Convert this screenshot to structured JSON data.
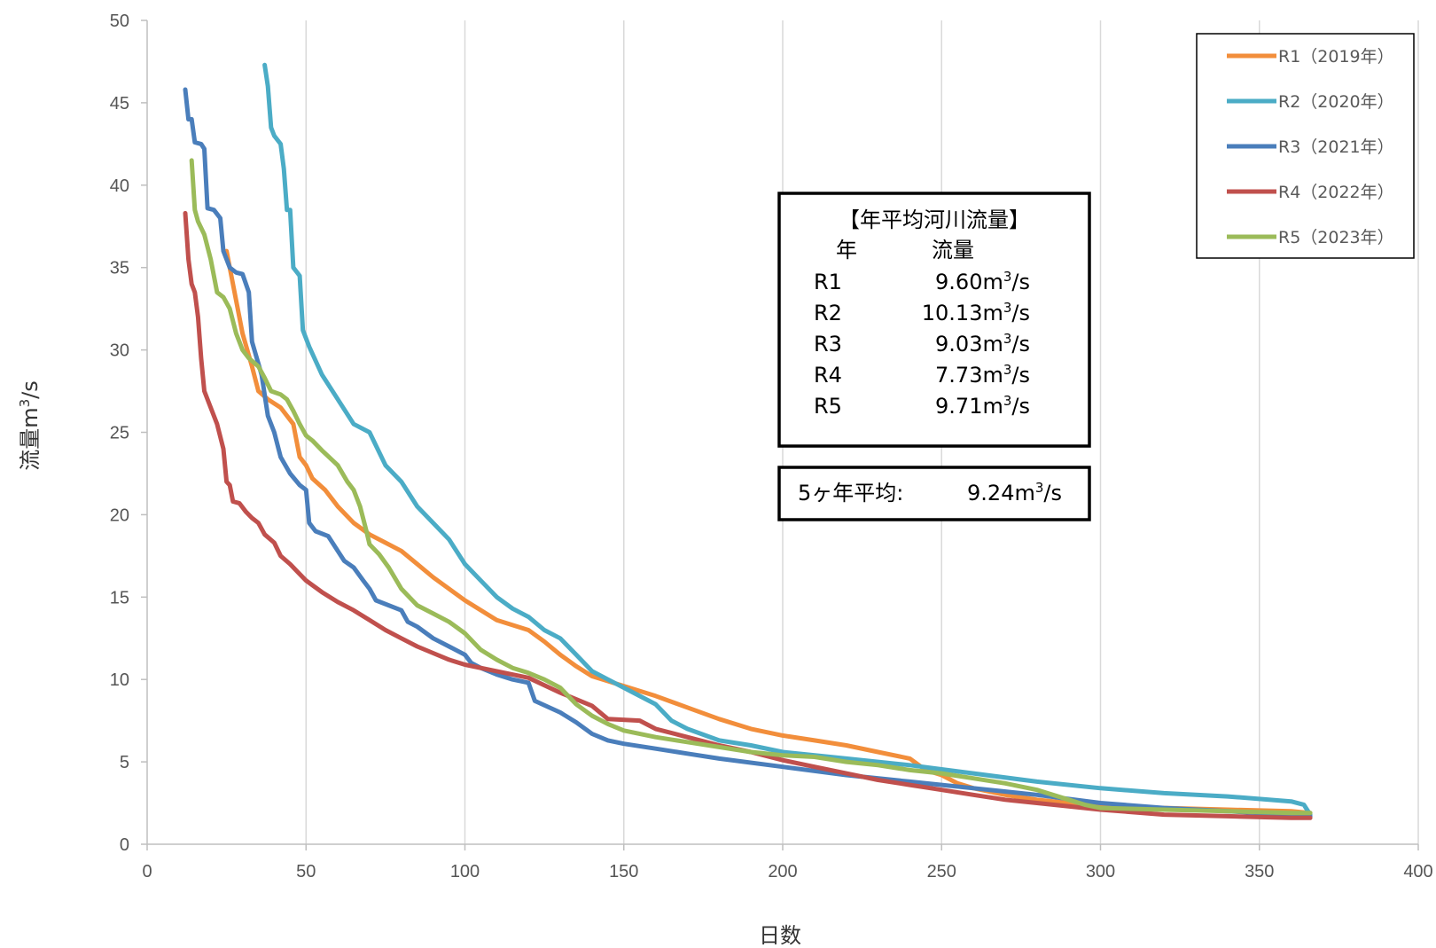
{
  "chart_data": {
    "type": "line",
    "xlabel": "日数",
    "ylabel": "流量m³/s",
    "ylabel_main": "流量m",
    "ylabel_sup": "3",
    "ylabel_tail": "/s",
    "xlim": [
      0,
      400
    ],
    "ylim": [
      0,
      50
    ],
    "x_ticks": [
      "0",
      "50",
      "100",
      "150",
      "200",
      "250",
      "300",
      "350",
      "400"
    ],
    "y_ticks": [
      "0",
      "5",
      "10",
      "15",
      "20",
      "25",
      "30",
      "35",
      "40",
      "45",
      "50"
    ],
    "grid": "vertical",
    "legend_position": "top-right",
    "series": [
      {
        "name": "R1（2019年）",
        "color": "#f28e3b",
        "points": [
          [
            25,
            36
          ],
          [
            27,
            34
          ],
          [
            30,
            31
          ],
          [
            33,
            29
          ],
          [
            35,
            27.5
          ],
          [
            38,
            27
          ],
          [
            42,
            26.5
          ],
          [
            46,
            25.5
          ],
          [
            48,
            23.5
          ],
          [
            50,
            23
          ],
          [
            52,
            22.2
          ],
          [
            56,
            21.5
          ],
          [
            60,
            20.5
          ],
          [
            65,
            19.5
          ],
          [
            70,
            18.8
          ],
          [
            75,
            18.3
          ],
          [
            80,
            17.8
          ],
          [
            85,
            17
          ],
          [
            90,
            16.2
          ],
          [
            95,
            15.5
          ],
          [
            100,
            14.8
          ],
          [
            110,
            13.6
          ],
          [
            120,
            13
          ],
          [
            125,
            12.3
          ],
          [
            130,
            11.5
          ],
          [
            135,
            10.8
          ],
          [
            140,
            10.2
          ],
          [
            150,
            9.6
          ],
          [
            160,
            9
          ],
          [
            170,
            8.3
          ],
          [
            180,
            7.6
          ],
          [
            190,
            7
          ],
          [
            200,
            6.6
          ],
          [
            210,
            6.3
          ],
          [
            220,
            6
          ],
          [
            230,
            5.6
          ],
          [
            240,
            5.2
          ],
          [
            245,
            4.5
          ],
          [
            250,
            4.2
          ],
          [
            255,
            3.7
          ],
          [
            260,
            3.4
          ],
          [
            270,
            3
          ],
          [
            280,
            2.7
          ],
          [
            290,
            2.5
          ],
          [
            300,
            2.3
          ],
          [
            320,
            2.2
          ],
          [
            340,
            2.1
          ],
          [
            360,
            2
          ],
          [
            366,
            1.9
          ]
        ]
      },
      {
        "name": "R2（2020年）",
        "color": "#4bacc6",
        "points": [
          [
            37,
            47.3
          ],
          [
            38,
            46
          ],
          [
            39,
            43.5
          ],
          [
            40,
            43
          ],
          [
            42,
            42.5
          ],
          [
            43,
            41
          ],
          [
            44,
            38.5
          ],
          [
            45,
            38.5
          ],
          [
            46,
            35
          ],
          [
            48,
            34.5
          ],
          [
            49,
            31.2
          ],
          [
            51,
            30.2
          ],
          [
            55,
            28.5
          ],
          [
            60,
            27
          ],
          [
            65,
            25.5
          ],
          [
            70,
            25
          ],
          [
            75,
            23
          ],
          [
            80,
            22
          ],
          [
            85,
            20.5
          ],
          [
            90,
            19.5
          ],
          [
            95,
            18.5
          ],
          [
            100,
            17
          ],
          [
            105,
            16
          ],
          [
            110,
            15
          ],
          [
            115,
            14.3
          ],
          [
            120,
            13.8
          ],
          [
            125,
            13
          ],
          [
            130,
            12.5
          ],
          [
            135,
            11.5
          ],
          [
            140,
            10.5
          ],
          [
            145,
            10
          ],
          [
            150,
            9.5
          ],
          [
            160,
            8.5
          ],
          [
            165,
            7.5
          ],
          [
            170,
            7
          ],
          [
            180,
            6.3
          ],
          [
            190,
            6
          ],
          [
            200,
            5.6
          ],
          [
            220,
            5.2
          ],
          [
            240,
            4.8
          ],
          [
            260,
            4.3
          ],
          [
            280,
            3.8
          ],
          [
            300,
            3.4
          ],
          [
            320,
            3.1
          ],
          [
            340,
            2.9
          ],
          [
            360,
            2.6
          ],
          [
            364,
            2.4
          ],
          [
            366,
            1.8
          ]
        ]
      },
      {
        "name": "R3（2021年）",
        "color": "#4a7ebb",
        "points": [
          [
            12,
            45.8
          ],
          [
            13,
            44
          ],
          [
            14,
            44
          ],
          [
            15,
            42.6
          ],
          [
            17,
            42.5
          ],
          [
            18,
            42.2
          ],
          [
            19,
            38.6
          ],
          [
            21,
            38.5
          ],
          [
            23,
            38
          ],
          [
            24,
            36
          ],
          [
            26,
            35
          ],
          [
            28,
            34.7
          ],
          [
            30,
            34.6
          ],
          [
            32,
            33.5
          ],
          [
            33,
            30.5
          ],
          [
            36,
            28.5
          ],
          [
            38,
            26
          ],
          [
            40,
            25
          ],
          [
            42,
            23.5
          ],
          [
            45,
            22.5
          ],
          [
            48,
            21.8
          ],
          [
            50,
            21.5
          ],
          [
            51,
            19.5
          ],
          [
            53,
            19
          ],
          [
            57,
            18.7
          ],
          [
            60,
            17.8
          ],
          [
            62,
            17.2
          ],
          [
            65,
            16.8
          ],
          [
            68,
            16
          ],
          [
            70,
            15.5
          ],
          [
            72,
            14.8
          ],
          [
            80,
            14.2
          ],
          [
            82,
            13.5
          ],
          [
            85,
            13.2
          ],
          [
            90,
            12.5
          ],
          [
            95,
            12
          ],
          [
            100,
            11.5
          ],
          [
            102,
            11
          ],
          [
            105,
            10.7
          ],
          [
            110,
            10.3
          ],
          [
            115,
            10
          ],
          [
            120,
            9.8
          ],
          [
            122,
            8.7
          ],
          [
            130,
            8
          ],
          [
            135,
            7.4
          ],
          [
            140,
            6.7
          ],
          [
            145,
            6.3
          ],
          [
            150,
            6.1
          ],
          [
            160,
            5.8
          ],
          [
            170,
            5.5
          ],
          [
            180,
            5.2
          ],
          [
            200,
            4.7
          ],
          [
            220,
            4.2
          ],
          [
            240,
            3.8
          ],
          [
            260,
            3.4
          ],
          [
            280,
            3
          ],
          [
            300,
            2.5
          ],
          [
            320,
            2.2
          ],
          [
            340,
            2
          ],
          [
            360,
            1.8
          ],
          [
            366,
            1.7
          ]
        ]
      },
      {
        "name": "R4（2022年）",
        "color": "#c0504d",
        "points": [
          [
            12,
            38.3
          ],
          [
            13,
            35.5
          ],
          [
            14,
            34
          ],
          [
            15,
            33.5
          ],
          [
            16,
            32
          ],
          [
            17,
            29.5
          ],
          [
            18,
            27.5
          ],
          [
            20,
            26.5
          ],
          [
            22,
            25.5
          ],
          [
            24,
            24
          ],
          [
            25,
            22
          ],
          [
            26,
            21.8
          ],
          [
            27,
            20.8
          ],
          [
            29,
            20.7
          ],
          [
            31,
            20.2
          ],
          [
            33,
            19.8
          ],
          [
            35,
            19.5
          ],
          [
            37,
            18.8
          ],
          [
            40,
            18.3
          ],
          [
            42,
            17.5
          ],
          [
            45,
            17
          ],
          [
            47,
            16.6
          ],
          [
            50,
            16
          ],
          [
            55,
            15.3
          ],
          [
            60,
            14.7
          ],
          [
            65,
            14.2
          ],
          [
            70,
            13.6
          ],
          [
            75,
            13
          ],
          [
            80,
            12.5
          ],
          [
            85,
            12
          ],
          [
            90,
            11.6
          ],
          [
            95,
            11.2
          ],
          [
            100,
            10.9
          ],
          [
            110,
            10.5
          ],
          [
            120,
            10.1
          ],
          [
            130,
            9.2
          ],
          [
            140,
            8.4
          ],
          [
            145,
            7.6
          ],
          [
            155,
            7.5
          ],
          [
            160,
            7
          ],
          [
            170,
            6.5
          ],
          [
            180,
            6
          ],
          [
            190,
            5.6
          ],
          [
            200,
            5.1
          ],
          [
            210,
            4.7
          ],
          [
            220,
            4.3
          ],
          [
            230,
            3.9
          ],
          [
            240,
            3.6
          ],
          [
            250,
            3.3
          ],
          [
            260,
            3
          ],
          [
            270,
            2.7
          ],
          [
            280,
            2.5
          ],
          [
            300,
            2.1
          ],
          [
            320,
            1.8
          ],
          [
            340,
            1.7
          ],
          [
            360,
            1.6
          ],
          [
            366,
            1.6
          ]
        ]
      },
      {
        "name": "R5（2023年）",
        "color": "#9bbb59",
        "points": [
          [
            14,
            41.5
          ],
          [
            15,
            38.5
          ],
          [
            16,
            37.8
          ],
          [
            18,
            37
          ],
          [
            20,
            35.5
          ],
          [
            22,
            33.5
          ],
          [
            24,
            33.2
          ],
          [
            26,
            32.5
          ],
          [
            28,
            31
          ],
          [
            30,
            30
          ],
          [
            32,
            29.5
          ],
          [
            35,
            29
          ],
          [
            37,
            28.3
          ],
          [
            39,
            27.5
          ],
          [
            42,
            27.3
          ],
          [
            44,
            27
          ],
          [
            46,
            26.3
          ],
          [
            48,
            25.5
          ],
          [
            50,
            24.8
          ],
          [
            52,
            24.5
          ],
          [
            55,
            23.9
          ],
          [
            60,
            23
          ],
          [
            63,
            22
          ],
          [
            65,
            21.5
          ],
          [
            67,
            20.5
          ],
          [
            69,
            19
          ],
          [
            70,
            18.2
          ],
          [
            73,
            17.6
          ],
          [
            76,
            16.8
          ],
          [
            80,
            15.5
          ],
          [
            85,
            14.5
          ],
          [
            90,
            14
          ],
          [
            95,
            13.5
          ],
          [
            100,
            12.8
          ],
          [
            105,
            11.8
          ],
          [
            110,
            11.2
          ],
          [
            115,
            10.7
          ],
          [
            120,
            10.4
          ],
          [
            125,
            10
          ],
          [
            130,
            9.5
          ],
          [
            135,
            8.5
          ],
          [
            140,
            7.8
          ],
          [
            145,
            7.3
          ],
          [
            150,
            6.9
          ],
          [
            160,
            6.5
          ],
          [
            170,
            6.2
          ],
          [
            180,
            5.9
          ],
          [
            190,
            5.6
          ],
          [
            200,
            5.4
          ],
          [
            210,
            5.3
          ],
          [
            220,
            5
          ],
          [
            230,
            4.8
          ],
          [
            240,
            4.5
          ],
          [
            250,
            4.3
          ],
          [
            260,
            4
          ],
          [
            270,
            3.7
          ],
          [
            280,
            3.3
          ],
          [
            290,
            2.7
          ],
          [
            295,
            2.4
          ],
          [
            300,
            2.2
          ],
          [
            320,
            2.1
          ],
          [
            340,
            2
          ],
          [
            360,
            1.9
          ],
          [
            366,
            1.9
          ]
        ]
      }
    ]
  },
  "infobox": {
    "title": "【年平均河川流量】",
    "col_year": "年",
    "col_flow": "流量",
    "rows": [
      {
        "year": "R1",
        "value": "9.60m",
        "unit_tail": "/s"
      },
      {
        "year": "R2",
        "value": "10.13m",
        "unit_tail": "/s"
      },
      {
        "year": "R3",
        "value": "9.03m",
        "unit_tail": "/s"
      },
      {
        "year": "R4",
        "value": "7.73m",
        "unit_tail": "/s"
      },
      {
        "year": "R5",
        "value": "9.71m",
        "unit_tail": "/s"
      }
    ],
    "unit_sup": "3"
  },
  "avgbox": {
    "label": "5ヶ年平均:",
    "value": "9.24m",
    "unit_sup": "3",
    "unit_tail": "/s"
  }
}
